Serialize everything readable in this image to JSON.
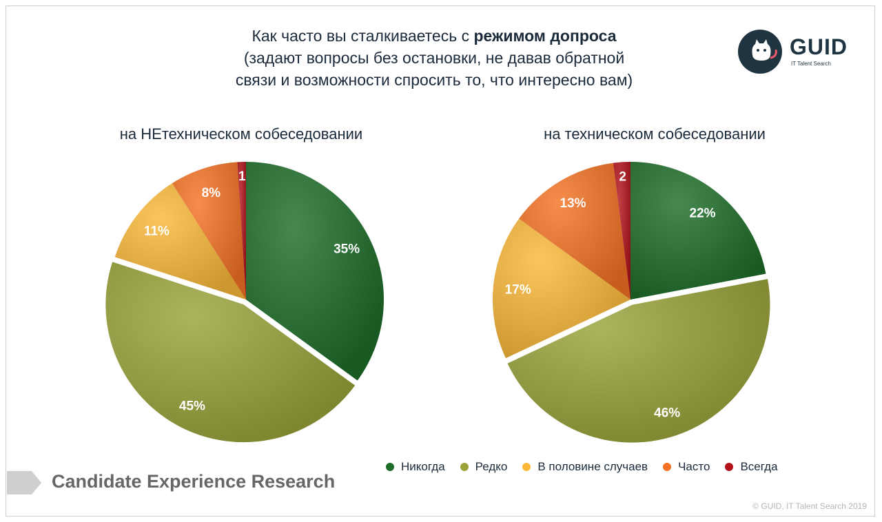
{
  "title": {
    "line1_prefix": "Как часто вы сталкиваетесь с ",
    "line1_bold": "режимом допроса",
    "line2": "(задают вопросы без остановки, не давав обратной",
    "line3": "связи и возможности спросить то, что интересно вам)"
  },
  "logo": {
    "name": "GUID",
    "tagline": "IT Talent Search",
    "icon": "cat-icon"
  },
  "footer": {
    "label": "Candidate Experience Research",
    "copyright": "© GUID, IT Talent Search 2019"
  },
  "legend": [
    {
      "label": "Никогда",
      "color": "#1e6e2a"
    },
    {
      "label": "Редко",
      "color": "#9aa33a"
    },
    {
      "label": "В половине случаев",
      "color": "#fbb93a"
    },
    {
      "label": "Часто",
      "color": "#f47325"
    },
    {
      "label": "Всегда",
      "color": "#b3141c"
    }
  ],
  "chart_data": [
    {
      "type": "pie",
      "title": "на НЕтехническом собеседовании",
      "categories": [
        "Никогда",
        "Редко",
        "В половине случаев",
        "Часто",
        "Всегда"
      ],
      "values": [
        35,
        45,
        11,
        8,
        1
      ],
      "labels": [
        "35%",
        "45%",
        "11%",
        "8%",
        "1"
      ],
      "colors": [
        "#1e6e2a",
        "#9aa33a",
        "#fbb93a",
        "#f47325",
        "#b3141c"
      ]
    },
    {
      "type": "pie",
      "title": "на техническом собеседовании",
      "categories": [
        "Никогда",
        "Редко",
        "В половине случаев",
        "Часто",
        "Всегда"
      ],
      "values": [
        22,
        46,
        17,
        13,
        2
      ],
      "labels": [
        "22%",
        "46%",
        "17%",
        "13%",
        "2"
      ],
      "colors": [
        "#1e6e2a",
        "#9aa33a",
        "#fbb93a",
        "#f47325",
        "#b3141c"
      ]
    }
  ]
}
